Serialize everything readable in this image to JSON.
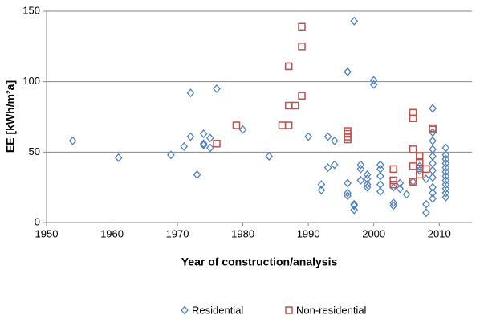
{
  "chart_data": {
    "type": "scatter",
    "xlabel": "Year of construction/analysis",
    "ylabel": "EE [kWh/m²a]",
    "xlim": [
      1950,
      2015
    ],
    "xticks": [
      1950,
      1960,
      1970,
      1980,
      1990,
      2000,
      2010
    ],
    "ylim": [
      0,
      150
    ],
    "yticks": [
      0,
      50,
      100,
      150
    ],
    "grid": true,
    "legend": "bottom",
    "series": [
      {
        "name": "Residential",
        "color": "#4f81bd",
        "marker": "diamond",
        "x": [
          1954,
          1961,
          1969,
          1971,
          1972,
          1972,
          1973,
          1974,
          1974,
          1974,
          1975,
          1975,
          1976,
          1980,
          1984,
          1990,
          1992,
          1992,
          1993,
          1993,
          1994,
          1994,
          1996,
          1996,
          1996,
          1996,
          1997,
          1997,
          1997,
          1997,
          1998,
          1998,
          1998,
          1999,
          1999,
          1999,
          1999,
          2000,
          2000,
          2001,
          2001,
          2001,
          2001,
          2001,
          2003,
          2003,
          2003,
          2004,
          2004,
          2005,
          2006,
          2007,
          2007,
          2008,
          2008,
          2008,
          2009,
          2009,
          2009,
          2009,
          2009,
          2009,
          2009,
          2009,
          2009,
          2009,
          2009,
          2011,
          2011,
          2011,
          2011,
          2011,
          2011,
          2011,
          2011,
          2011,
          2011,
          2011,
          2011
        ],
        "values": [
          58,
          46,
          48,
          54,
          92,
          61,
          34,
          63,
          55,
          56,
          60,
          53,
          95,
          66,
          47,
          61,
          27,
          23,
          39,
          61,
          41,
          58,
          107,
          21,
          19,
          28,
          143,
          13,
          9,
          12,
          41,
          38,
          30,
          34,
          31,
          25,
          27,
          101,
          98,
          41,
          38,
          33,
          27,
          22,
          14,
          12,
          25,
          28,
          24,
          20,
          29,
          37,
          40,
          13,
          7,
          31,
          81,
          64,
          58,
          52,
          47,
          42,
          37,
          32,
          25,
          21,
          17,
          53,
          48,
          45,
          42,
          39,
          36,
          33,
          30,
          27,
          24,
          21,
          18
        ]
      },
      {
        "name": "Non-residential",
        "color": "#c0504d",
        "marker": "square",
        "x": [
          1976,
          1979,
          1986,
          1987,
          1987,
          1987,
          1988,
          1989,
          1989,
          1989,
          1996,
          1996,
          1996,
          1996,
          2003,
          2003,
          2003,
          2006,
          2006,
          2006,
          2006,
          2006,
          2007,
          2007,
          2007,
          2008,
          2009,
          2009
        ],
        "values": [
          56,
          69,
          69,
          69,
          83,
          111,
          83,
          90,
          125,
          139,
          65,
          63,
          61,
          59,
          38,
          30,
          27,
          78,
          74,
          52,
          40,
          29,
          47,
          43,
          34,
          38,
          67,
          66
        ]
      }
    ]
  }
}
